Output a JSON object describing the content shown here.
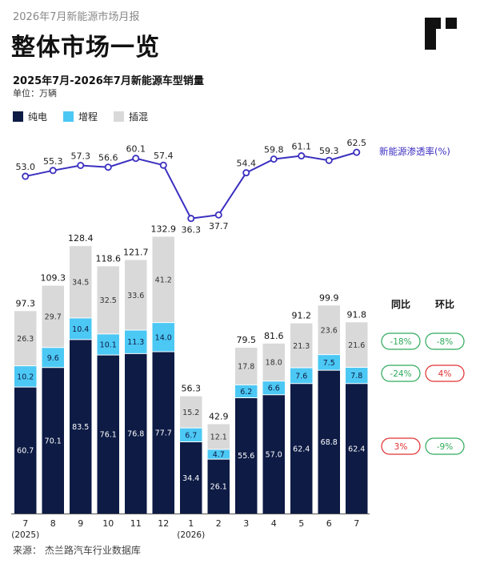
{
  "header": {
    "kicker": "2026年7月新能源市场月报",
    "title": "整体市场一览",
    "subtitle": "2025年7月-2026年7月新能源车型销量",
    "unit": "单位：万辆"
  },
  "legend": {
    "items": [
      {
        "label": "纯电",
        "color": "#0d1b45"
      },
      {
        "label": "增程",
        "color": "#4cc8f4"
      },
      {
        "label": "插混",
        "color": "#d9d9d9"
      }
    ]
  },
  "source": "来源：   杰兰路汽车行业数据库",
  "colors": {
    "bev": "#0d1b45",
    "erev": "#4cc8f4",
    "phev": "#d9d9d9",
    "line": "#3b2fc0",
    "positive": "#2eaa5a",
    "negative": "#e03030"
  },
  "chart_data": {
    "type": "bar",
    "stacked": true,
    "categories": [
      "7",
      "8",
      "9",
      "10",
      "11",
      "12",
      "1",
      "2",
      "3",
      "4",
      "5",
      "6",
      "7"
    ],
    "year_labels": [
      {
        "index": 0,
        "label": "(2025)"
      },
      {
        "index": 6,
        "label": "(2026)"
      }
    ],
    "series": [
      {
        "name": "纯电",
        "values": [
          60.7,
          70.1,
          83.5,
          76.1,
          76.8,
          77.7,
          34.4,
          26.1,
          55.6,
          57.0,
          62.4,
          68.8,
          62.4
        ]
      },
      {
        "name": "增程",
        "values": [
          10.2,
          9.6,
          10.4,
          10.1,
          11.3,
          14.0,
          6.7,
          4.7,
          6.2,
          6.6,
          7.6,
          7.5,
          7.8
        ]
      },
      {
        "name": "插混",
        "values": [
          26.3,
          29.7,
          34.5,
          32.5,
          33.6,
          41.2,
          15.2,
          12.1,
          17.8,
          18.0,
          21.3,
          23.6,
          21.6
        ]
      }
    ],
    "totals": [
      97.3,
      109.3,
      128.4,
      118.6,
      121.7,
      132.9,
      56.3,
      42.9,
      79.5,
      81.6,
      91.2,
      99.9,
      91.8
    ],
    "penetration": {
      "name": "新能源渗透率(%)",
      "values": [
        53.0,
        55.3,
        57.3,
        56.6,
        60.1,
        57.4,
        36.3,
        37.7,
        54.4,
        59.8,
        61.1,
        59.3,
        62.5
      ]
    },
    "comparison": {
      "headers": [
        "同比",
        "环比"
      ],
      "rows": [
        {
          "yoy": "-18%",
          "yoy_sign": "positive",
          "mom": "-8%",
          "mom_sign": "positive"
        },
        {
          "yoy": "-24%",
          "yoy_sign": "positive",
          "mom": "4%",
          "mom_sign": "negative"
        },
        {
          "yoy": "3%",
          "yoy_sign": "negative",
          "mom": "-9%",
          "mom_sign": "positive"
        }
      ]
    }
  }
}
